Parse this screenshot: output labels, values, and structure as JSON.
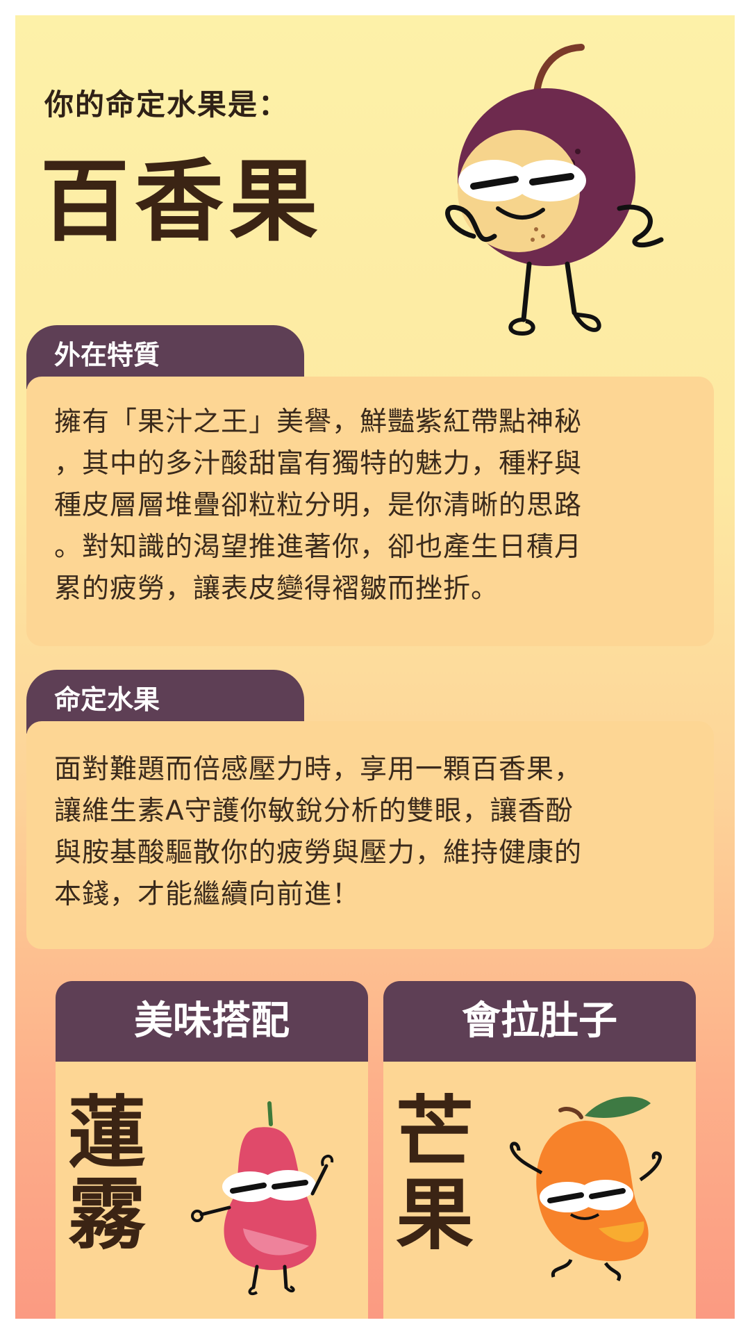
{
  "intro": "你的命定水果是：",
  "fruit_name": "百香果",
  "sections": {
    "traits": {
      "title": "外在特質",
      "lines": [
        "擁有「果汁之王」美譽，鮮豔紫紅帶點神秘",
        "，其中的多汁酸甜富有獨特的魅力，種籽與",
        "種皮層層堆疊卻粒粒分明，是你清晰的思路",
        "。對知識的渴望推進著你，卻也產生日積月",
        "累的疲勞，讓表皮變得褶皺而挫折。"
      ]
    },
    "destiny": {
      "title": "命定水果",
      "lines": [
        "面對難題而倍感壓力時，享用一顆百香果，",
        "讓維生素A守護你敏銳分析的雙眼，讓香酚",
        "與胺基酸驅散你的疲勞與壓力，維持健康的",
        "本錢，才能繼續向前進！"
      ]
    }
  },
  "pairing": {
    "title": "美味搭配",
    "fruit_chars": [
      "蓮",
      "霧"
    ],
    "icon": "wax-apple-character"
  },
  "upset": {
    "title": "會拉肚子",
    "fruit_chars": [
      "芒",
      "果"
    ],
    "icon": "mango-character"
  },
  "colors": {
    "tab": "#5e3f55",
    "panel": "#fdd694",
    "bg_top": "#fdf1a8",
    "bg_bottom": "#fb9a82",
    "title_text": "#3b2414"
  }
}
